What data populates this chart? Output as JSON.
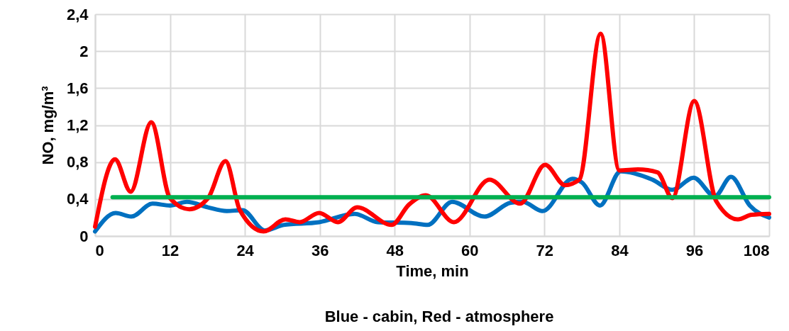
{
  "chart_data": {
    "type": "line",
    "xlabel": "Time, min",
    "ylabel": "NO, mg/m³",
    "annotations": [
      "Blue - cabin, Red - atmosphere"
    ],
    "series": [
      {
        "color": "#0070c0",
        "x": [
          0,
          3.3,
          5.8,
          9.2,
          12,
          14.7,
          18.1,
          21.1,
          23.6,
          27.2,
          30.2,
          35.9,
          41.6,
          45.3,
          50.7,
          53.3,
          57.2,
          62.4,
          66.6,
          68.5,
          71.7,
          76.5,
          78,
          80.9,
          84.2,
          89.3,
          92.5,
          95.9,
          99.3,
          101.9,
          104.9,
          108
        ],
        "values": [
          0.05,
          0.25,
          0.21,
          0.35,
          0.33,
          0.37,
          0.31,
          0.27,
          0.28,
          0.06,
          0.12,
          0.15,
          0.24,
          0.15,
          0.14,
          0.12,
          0.37,
          0.21,
          0.36,
          0.37,
          0.27,
          0.62,
          0.58,
          0.33,
          0.7,
          0.61,
          0.5,
          0.63,
          0.43,
          0.64,
          0.33,
          0.2
        ]
      },
      {
        "color": "#ff0000",
        "x": [
          0,
          3.2,
          5.7,
          9.0,
          12,
          15.1,
          18.1,
          20.9,
          23.2,
          27,
          30.5,
          32.8,
          35.9,
          38.9,
          42,
          47.5,
          50.3,
          53,
          57.5,
          63.2,
          68.1,
          72.1,
          75.3,
          77.6,
          81,
          84,
          87,
          90.1,
          92.5,
          96,
          99.5,
          103,
          105.2,
          108
        ],
        "values": [
          0.1,
          0.83,
          0.48,
          1.23,
          0.41,
          0.29,
          0.41,
          0.81,
          0.28,
          0.05,
          0.18,
          0.15,
          0.25,
          0.15,
          0.31,
          0.12,
          0.34,
          0.44,
          0.15,
          0.61,
          0.35,
          0.77,
          0.55,
          0.61,
          2.19,
          0.71,
          0.72,
          0.69,
          0.41,
          1.46,
          0.38,
          0.18,
          0.23,
          0.24
        ]
      },
      {
        "color": "#00b050",
        "x": [
          2.8,
          108
        ],
        "values": [
          0.42,
          0.42
        ]
      }
    ],
    "xlim": [
      0,
      108
    ],
    "xticks": [
      0,
      12,
      24,
      36,
      48,
      60,
      72,
      84,
      96,
      108
    ],
    "ylim": [
      0,
      2.4
    ],
    "yticks": [
      0,
      {
        "value": 0.4,
        "label": "0,4"
      },
      {
        "value": 0.8,
        "label": "0,8"
      },
      {
        "value": 1.2,
        "label": "1,2"
      },
      {
        "value": 1.6,
        "label": "1,6"
      },
      2,
      {
        "value": 2.4,
        "label": "2,4"
      }
    ],
    "grid": true,
    "marker": "none",
    "line_style": "solid"
  }
}
